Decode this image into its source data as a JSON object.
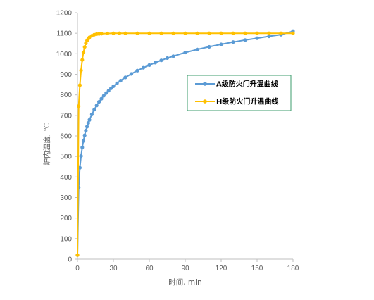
{
  "chart_data": {
    "type": "line",
    "xlabel": "时间, min",
    "ylabel": "炉内温度, ℃",
    "xlim": [
      0,
      180
    ],
    "ylim": [
      0,
      1200
    ],
    "x_ticks": [
      "0",
      "30",
      "60",
      "90",
      "120",
      "150",
      "180"
    ],
    "y_ticks": [
      "0",
      "100",
      "200",
      "300",
      "400",
      "500",
      "600",
      "700",
      "800",
      "900",
      "1000",
      "1100",
      "1200"
    ],
    "grid": false,
    "legend_position": "right",
    "series": [
      {
        "name": "A级防火门升温曲线",
        "color": "#5B9BD5",
        "x": [
          0,
          1,
          2,
          3,
          4,
          5,
          6,
          7,
          8,
          9,
          10,
          12,
          14,
          16,
          18,
          20,
          22,
          24,
          26,
          28,
          30,
          33,
          36,
          40,
          45,
          50,
          55,
          60,
          65,
          70,
          75,
          80,
          90,
          100,
          110,
          120,
          130,
          140,
          150,
          160,
          170,
          180
        ],
        "y": [
          20,
          349,
          445,
          502,
          544,
          576,
          603,
          626,
          645,
          663,
          678,
          705,
          728,
          748,
          766,
          781,
          796,
          809,
          820,
          832,
          842,
          856,
          869,
          885,
          902,
          918,
          932,
          945,
          957,
          968,
          979,
          988,
          1006,
          1021,
          1034,
          1046,
          1057,
          1067,
          1076,
          1085,
          1093,
          1110
        ]
      },
      {
        "name": "H级防火门升温曲线",
        "color": "#FFC000",
        "x": [
          0,
          1,
          2,
          3,
          4,
          5,
          6,
          7,
          8,
          9,
          10,
          12,
          14,
          16,
          18,
          20,
          25,
          30,
          35,
          40,
          50,
          60,
          70,
          80,
          90,
          100,
          110,
          120,
          130,
          140,
          150,
          160,
          170,
          180
        ],
        "y": [
          20,
          745,
          847,
          919,
          970,
          1007,
          1033,
          1051,
          1064,
          1073,
          1080,
          1088,
          1093,
          1096,
          1097,
          1098,
          1099,
          1100,
          1100,
          1100,
          1100,
          1100,
          1100,
          1100,
          1100,
          1100,
          1100,
          1100,
          1100,
          1100,
          1100,
          1100,
          1100,
          1100
        ]
      }
    ]
  }
}
